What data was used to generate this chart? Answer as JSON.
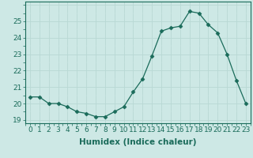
{
  "x": [
    0,
    1,
    2,
    3,
    4,
    5,
    6,
    7,
    8,
    9,
    10,
    11,
    12,
    13,
    14,
    15,
    16,
    17,
    18,
    19,
    20,
    21,
    22,
    23
  ],
  "y": [
    20.4,
    20.4,
    20.0,
    20.0,
    19.8,
    19.5,
    19.4,
    19.2,
    19.2,
    19.5,
    19.8,
    20.7,
    21.5,
    22.9,
    24.4,
    24.6,
    24.7,
    25.6,
    25.5,
    24.8,
    24.3,
    23.0,
    21.4,
    20.0
  ],
  "line_color": "#1a6b5a",
  "marker": "D",
  "marker_size": 2.5,
  "bg_color": "#cde8e5",
  "grid_major_color": "#b8d8d4",
  "grid_minor_color": "#d0e8e5",
  "xlabel": "Humidex (Indice chaleur)",
  "xlim": [
    -0.5,
    23.5
  ],
  "ylim": [
    18.8,
    26.2
  ],
  "yticks": [
    19,
    20,
    21,
    22,
    23,
    24,
    25
  ],
  "xticks": [
    0,
    1,
    2,
    3,
    4,
    5,
    6,
    7,
    8,
    9,
    10,
    11,
    12,
    13,
    14,
    15,
    16,
    17,
    18,
    19,
    20,
    21,
    22,
    23
  ],
  "tick_fontsize": 6.5,
  "xlabel_fontsize": 7.5
}
